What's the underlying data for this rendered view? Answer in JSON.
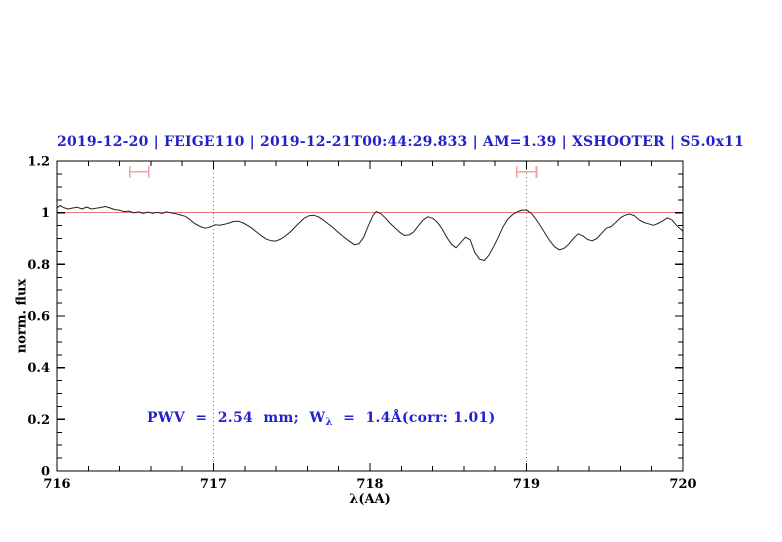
{
  "title": {
    "text": "2019-12-20 | FEIGE110 | 2019-12-21T00:44:29.833 | AM=1.39 | XSHOOTER | S5.0x11"
  },
  "annotation": {
    "prefix": "PWV  =  2.54  mm;  W",
    "subscript": "λ",
    "suffix": "  =  1.4Å(corr: 1.01)"
  },
  "colors": {
    "accent_blue": "#2222cc",
    "continuum_red": "#f07878",
    "marker_pink": "#f2a2a2",
    "spectrum_black": "#222222",
    "dotted_gray": "#666666",
    "axis_black": "#000000"
  },
  "chart_data": {
    "type": "line",
    "title": "2019-12-20 | FEIGE110 | 2019-12-21T00:44:29.833 | AM=1.39 | XSHOOTER | S5.0x11",
    "xlabel": "λ(AA)",
    "ylabel": "norm. flux",
    "xlim": [
      716,
      720
    ],
    "ylim": [
      0,
      1.2
    ],
    "grid": false,
    "legend": "none",
    "x_major_ticks": [
      716,
      717,
      718,
      719,
      720
    ],
    "x_tick_labels": [
      "716",
      "717",
      "718",
      "719",
      "720"
    ],
    "x_minor_step": 0.2,
    "y_major_ticks": [
      0,
      0.2,
      0.4,
      0.6,
      0.8,
      1,
      1.2
    ],
    "y_tick_labels": [
      "0",
      "0.2",
      "0.4",
      "0.6",
      "0.8",
      "1",
      "1.2"
    ],
    "y_minor_step": 0.05,
    "continuum_level": 1.0,
    "dotted_vlines": [
      717,
      719
    ],
    "telluric_markers": [
      {
        "x_start": 716.465,
        "x_end": 716.586,
        "y": 1.158
      },
      {
        "x_start": 718.937,
        "x_end": 719.064,
        "y": 1.158
      }
    ],
    "series": [
      {
        "name": "normalized spectrum",
        "x": [
          716.0,
          716.02,
          716.04,
          716.07,
          716.1,
          716.13,
          716.16,
          716.19,
          716.22,
          716.25,
          716.28,
          716.31,
          716.34,
          716.37,
          716.4,
          716.43,
          716.46,
          716.49,
          716.52,
          716.55,
          716.58,
          716.61,
          716.64,
          716.67,
          716.7,
          716.73,
          716.76,
          716.79,
          716.82,
          716.85,
          716.88,
          716.92,
          716.95,
          716.98,
          717.01,
          717.04,
          717.07,
          717.1,
          717.13,
          717.16,
          717.19,
          717.22,
          717.25,
          717.28,
          717.31,
          717.34,
          717.37,
          717.4,
          717.43,
          717.46,
          717.49,
          717.52,
          717.55,
          717.58,
          717.61,
          717.64,
          717.67,
          717.7,
          717.73,
          717.76,
          717.79,
          717.82,
          717.86,
          717.9,
          717.93,
          717.96,
          717.99,
          718.02,
          718.04,
          718.07,
          718.1,
          718.13,
          718.16,
          718.19,
          718.22,
          718.25,
          718.28,
          718.31,
          718.34,
          718.37,
          718.4,
          718.43,
          718.46,
          718.49,
          718.52,
          718.55,
          718.58,
          718.61,
          718.64,
          718.67,
          718.7,
          718.73,
          718.76,
          718.79,
          718.82,
          718.85,
          718.88,
          718.91,
          718.94,
          718.97,
          719.0,
          719.03,
          719.06,
          719.09,
          719.12,
          719.15,
          719.18,
          719.21,
          719.24,
          719.27,
          719.3,
          719.33,
          719.36,
          719.39,
          719.42,
          719.45,
          719.48,
          719.51,
          719.54,
          719.57,
          719.6,
          719.63,
          719.66,
          719.69,
          719.72,
          719.75,
          719.78,
          719.81,
          719.84,
          719.87,
          719.9,
          719.93,
          719.96,
          720.0
        ],
        "y": [
          1.018,
          1.028,
          1.02,
          1.014,
          1.018,
          1.021,
          1.014,
          1.022,
          1.014,
          1.017,
          1.02,
          1.024,
          1.018,
          1.012,
          1.009,
          1.004,
          1.006,
          0.999,
          1.003,
          0.997,
          1.002,
          0.998,
          1.001,
          0.997,
          1.003,
          0.999,
          0.996,
          0.991,
          0.986,
          0.973,
          0.958,
          0.945,
          0.94,
          0.945,
          0.953,
          0.951,
          0.955,
          0.96,
          0.966,
          0.967,
          0.96,
          0.95,
          0.938,
          0.923,
          0.909,
          0.897,
          0.891,
          0.89,
          0.898,
          0.91,
          0.925,
          0.944,
          0.962,
          0.979,
          0.988,
          0.99,
          0.984,
          0.972,
          0.958,
          0.944,
          0.928,
          0.912,
          0.893,
          0.876,
          0.88,
          0.905,
          0.95,
          0.99,
          1.004,
          0.996,
          0.978,
          0.958,
          0.941,
          0.924,
          0.912,
          0.914,
          0.926,
          0.95,
          0.972,
          0.984,
          0.978,
          0.963,
          0.938,
          0.905,
          0.878,
          0.864,
          0.885,
          0.905,
          0.895,
          0.845,
          0.82,
          0.815,
          0.835,
          0.868,
          0.905,
          0.945,
          0.975,
          0.992,
          1.003,
          1.01,
          1.01,
          0.998,
          0.975,
          0.948,
          0.918,
          0.89,
          0.868,
          0.856,
          0.862,
          0.878,
          0.9,
          0.918,
          0.91,
          0.896,
          0.891,
          0.9,
          0.92,
          0.94,
          0.946,
          0.962,
          0.98,
          0.99,
          0.995,
          0.988,
          0.972,
          0.962,
          0.957,
          0.951,
          0.958,
          0.968,
          0.98,
          0.972,
          0.95,
          0.928
        ]
      }
    ]
  }
}
